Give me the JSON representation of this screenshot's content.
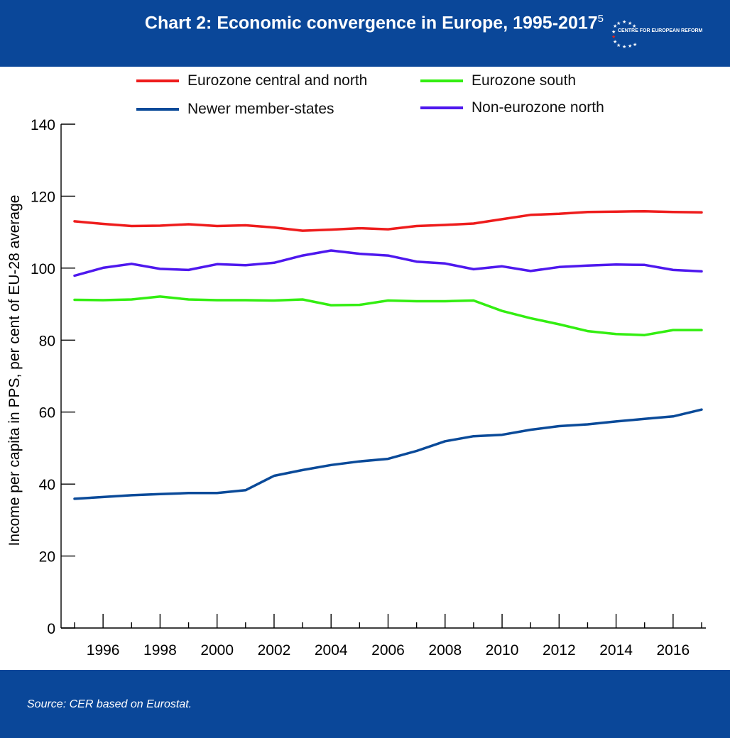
{
  "header": {
    "title": "Chart 2: Economic convergence in Europe, 1995-2017",
    "footnote": "5",
    "logo_text": "CENTRE FOR EUROPEAN REFORM",
    "background": "#0a4799"
  },
  "footer": {
    "source": "Source:  CER based on Eurostat."
  },
  "chart_data": {
    "type": "line",
    "ylabel": "Income per capita in PPS, per cent of EU-28 average",
    "ylim": [
      0,
      140
    ],
    "yticks": [
      "0",
      "20",
      "40",
      "60",
      "80",
      "100",
      "120",
      "140"
    ],
    "xlim": [
      1995,
      2017
    ],
    "xticks": [
      "1996",
      "1998",
      "2000",
      "2002",
      "2004",
      "2006",
      "2008",
      "2010",
      "2012",
      "2014",
      "2016"
    ],
    "x": [
      1995,
      1996,
      1997,
      1998,
      1999,
      2000,
      2001,
      2002,
      2003,
      2004,
      2005,
      2006,
      2007,
      2008,
      2009,
      2010,
      2011,
      2012,
      2013,
      2014,
      2015,
      2016,
      2017
    ],
    "series": [
      {
        "name": "Eurozone central and north",
        "color": "#ee1c1c",
        "values": [
          113.0,
          112.3,
          111.7,
          111.8,
          112.2,
          111.7,
          111.9,
          111.3,
          110.4,
          110.7,
          111.1,
          110.8,
          111.7,
          112.0,
          112.4,
          113.6,
          114.8,
          115.1,
          115.6,
          115.7,
          115.8,
          115.6,
          115.5
        ]
      },
      {
        "name": "Eurozone south",
        "color": "#33ee11",
        "values": [
          91.2,
          91.1,
          91.3,
          92.1,
          91.3,
          91.1,
          91.1,
          91.0,
          91.3,
          89.7,
          89.8,
          91.0,
          90.8,
          90.8,
          91.0,
          88.1,
          86.1,
          84.4,
          82.5,
          81.7,
          81.4,
          82.8,
          82.8
        ]
      },
      {
        "name": "Newer member-states",
        "color": "#0a4a99",
        "values": [
          35.9,
          36.4,
          36.9,
          37.2,
          37.5,
          37.5,
          38.3,
          42.3,
          43.9,
          45.3,
          46.3,
          47.0,
          49.2,
          51.9,
          53.3,
          53.7,
          55.1,
          56.1,
          56.6,
          57.4,
          58.1,
          58.8,
          60.7
        ]
      },
      {
        "name": "Non-eurozone north",
        "color": "#4e18ee",
        "values": [
          97.9,
          100.1,
          101.2,
          99.8,
          99.5,
          101.1,
          100.8,
          101.5,
          103.5,
          104.9,
          104.0,
          103.5,
          101.8,
          101.3,
          99.7,
          100.5,
          99.2,
          100.3,
          100.7,
          101.0,
          100.9,
          99.5,
          99.1
        ]
      }
    ]
  }
}
